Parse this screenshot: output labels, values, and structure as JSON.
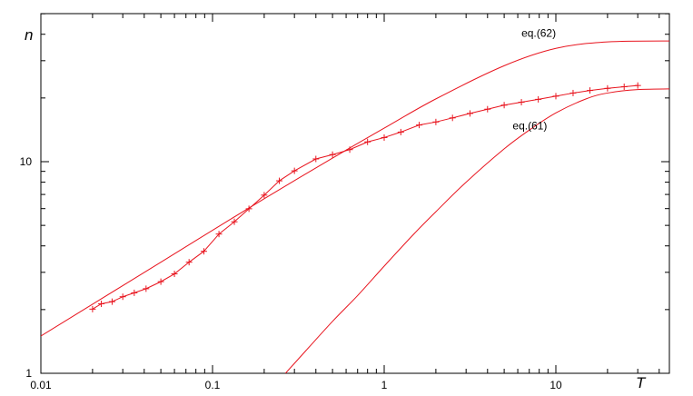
{
  "chart_data": {
    "type": "line",
    "title": "",
    "xlabel": "T",
    "ylabel": "n",
    "xscale": "log",
    "yscale": "log",
    "xlim": [
      0.01,
      50
    ],
    "ylim": [
      1,
      50
    ],
    "grid": false,
    "x_ticks": [
      {
        "value": 0.01,
        "label": "0.01"
      },
      {
        "value": 0.1,
        "label": "0.1"
      },
      {
        "value": 1,
        "label": "1"
      },
      {
        "value": 10,
        "label": "10"
      }
    ],
    "y_ticks": [
      {
        "value": 1,
        "label": "1"
      },
      {
        "value": 10,
        "label": "10"
      }
    ],
    "annotations": [
      {
        "text": "eq.(62)",
        "x": 6.3,
        "y": 39
      },
      {
        "text": "eq.(61)",
        "x": 5.6,
        "y": 14.2
      }
    ],
    "series": [
      {
        "marker": "plus",
        "color": "#e8141e",
        "x": [
          0.02,
          0.0225,
          0.026,
          0.03,
          0.035,
          0.041,
          0.05,
          0.06,
          0.073,
          0.089,
          0.109,
          0.134,
          0.163,
          0.2,
          0.245,
          0.3,
          0.4,
          0.5,
          0.63,
          0.8,
          1.0,
          1.25,
          1.6,
          2.0,
          2.5,
          3.16,
          4.0,
          5.0,
          6.3,
          7.9,
          10.0,
          12.6,
          15.8,
          20.0,
          25.0,
          30.0
        ],
        "y": [
          2.01,
          2.13,
          2.18,
          2.3,
          2.4,
          2.51,
          2.71,
          2.95,
          3.35,
          3.77,
          4.55,
          5.2,
          5.99,
          6.95,
          8.12,
          9.05,
          10.3,
          10.8,
          11.4,
          12.4,
          13.0,
          13.8,
          14.9,
          15.4,
          16.1,
          16.9,
          17.7,
          18.5,
          19.1,
          19.7,
          20.4,
          21.1,
          21.7,
          22.2,
          22.6,
          22.9
        ]
      },
      {
        "label": "eq.(62)",
        "color": "#e8141e",
        "x": [
          0.01,
          0.02,
          0.05,
          0.1,
          0.2,
          0.5,
          1,
          2,
          5,
          10,
          20,
          50
        ],
        "y": [
          1.5,
          2.12,
          3.35,
          4.74,
          6.68,
          10.4,
          14.4,
          19.8,
          28.4,
          34.3,
          36.8,
          37.2
        ]
      },
      {
        "label": "eq.(61)",
        "color": "#e8141e",
        "x": [
          0.266,
          0.35,
          0.5,
          0.7,
          1,
          1.5,
          2,
          3,
          5,
          7,
          10,
          15,
          20,
          30,
          50
        ],
        "y": [
          1.0,
          1.28,
          1.76,
          2.33,
          3.21,
          4.58,
          5.8,
          8.0,
          11.5,
          14.1,
          17.0,
          19.8,
          21.1,
          21.9,
          22.1
        ]
      }
    ]
  }
}
